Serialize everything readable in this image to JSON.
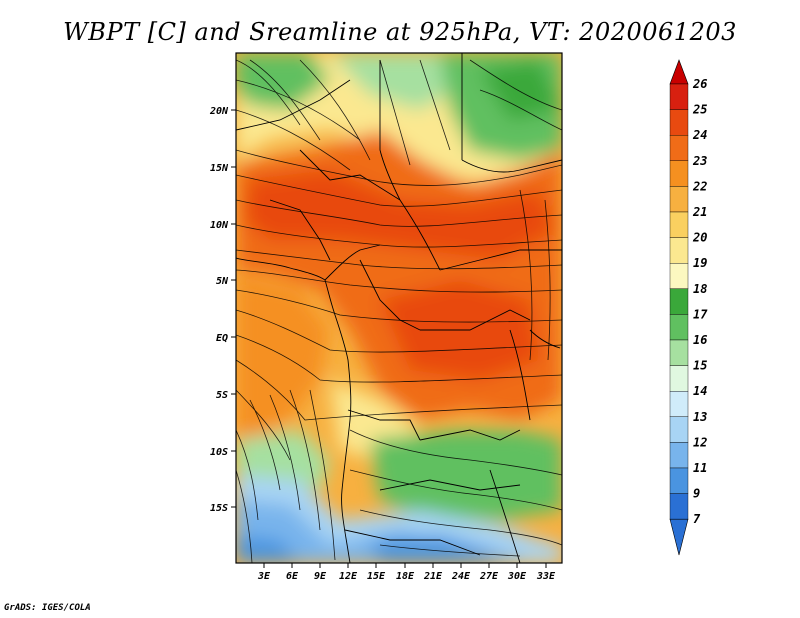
{
  "title": "WBPT [C] and Sreamline at 925hPa, VT: 2020061203",
  "footer": "GrADS: IGES/COLA",
  "map": {
    "lat_ticks": [
      "20N",
      "15N",
      "10N",
      "5N",
      "EQ",
      "5S",
      "10S",
      "15S"
    ],
    "lon_ticks": [
      "3E",
      "6E",
      "9E",
      "12E",
      "15E",
      "18E",
      "21E",
      "24E",
      "27E",
      "30E",
      "33E"
    ]
  },
  "colorbar": {
    "labels": [
      "26",
      "25",
      "24",
      "23",
      "22",
      "21",
      "20",
      "19",
      "18",
      "17",
      "16",
      "15",
      "14",
      "13",
      "12",
      "11",
      "9",
      "7"
    ],
    "colors": [
      "#c80000",
      "#d82010",
      "#e84a10",
      "#f06c18",
      "#f59020",
      "#f7b040",
      "#fad060",
      "#fbe890",
      "#fcf8c0",
      "#3aa83a",
      "#60c060",
      "#a6e0a0",
      "#e0f8e0",
      "#d0ecfa",
      "#a8d4f4",
      "#78b4ec",
      "#4a94e0",
      "#2a70d4"
    ]
  }
}
